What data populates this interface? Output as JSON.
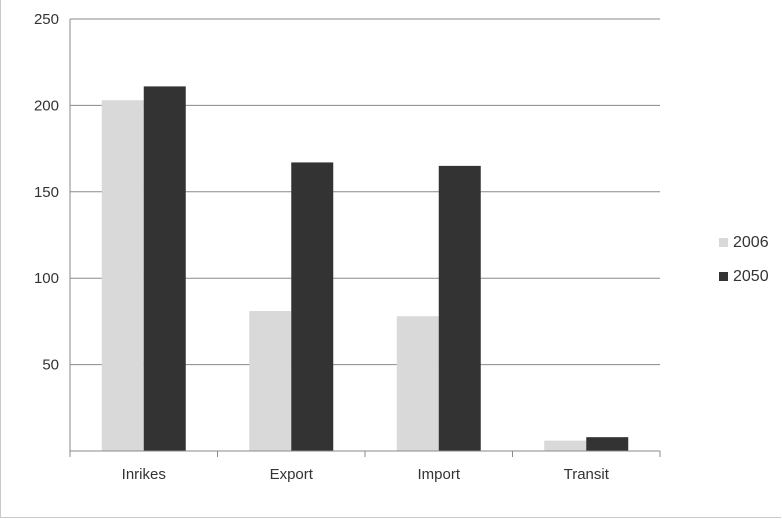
{
  "chart_data": {
    "type": "bar",
    "title": "",
    "xlabel": "",
    "ylabel": "",
    "categories": [
      "Inrikes",
      "Export",
      "Import",
      "Transit"
    ],
    "series": [
      {
        "name": "2006",
        "values": [
          203,
          81,
          78,
          6
        ],
        "color": "#d9d9d9"
      },
      {
        "name": "2050",
        "values": [
          211,
          167,
          165,
          8
        ],
        "color": "#333333"
      }
    ],
    "ylim": [
      0,
      250
    ],
    "yticks": [
      50,
      100,
      150,
      200,
      250
    ],
    "grid": true,
    "legend_position": "right"
  }
}
